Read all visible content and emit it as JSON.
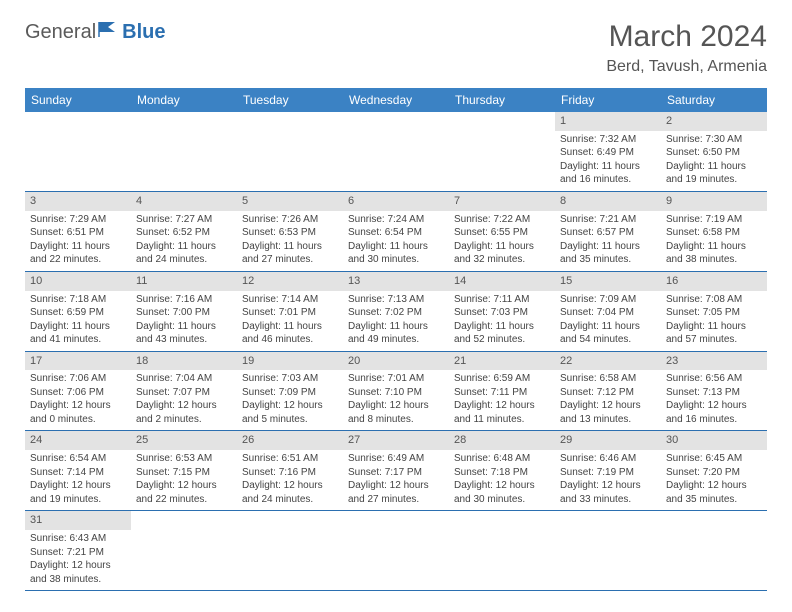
{
  "logo": {
    "text1": "General",
    "text2": "Blue"
  },
  "title": "March 2024",
  "location": "Berd, Tavush, Armenia",
  "colors": {
    "header_bg": "#3b82c4",
    "header_text": "#ffffff",
    "row_border": "#2b6fb0",
    "daynum_bg": "#e3e3e3",
    "text": "#444444",
    "logo_blue": "#2b6fb0"
  },
  "dayNames": [
    "Sunday",
    "Monday",
    "Tuesday",
    "Wednesday",
    "Thursday",
    "Friday",
    "Saturday"
  ],
  "weeks": [
    [
      null,
      null,
      null,
      null,
      null,
      {
        "n": "1",
        "sr": "7:32 AM",
        "ss": "6:49 PM",
        "dl": "11 hours and 16 minutes."
      },
      {
        "n": "2",
        "sr": "7:30 AM",
        "ss": "6:50 PM",
        "dl": "11 hours and 19 minutes."
      }
    ],
    [
      {
        "n": "3",
        "sr": "7:29 AM",
        "ss": "6:51 PM",
        "dl": "11 hours and 22 minutes."
      },
      {
        "n": "4",
        "sr": "7:27 AM",
        "ss": "6:52 PM",
        "dl": "11 hours and 24 minutes."
      },
      {
        "n": "5",
        "sr": "7:26 AM",
        "ss": "6:53 PM",
        "dl": "11 hours and 27 minutes."
      },
      {
        "n": "6",
        "sr": "7:24 AM",
        "ss": "6:54 PM",
        "dl": "11 hours and 30 minutes."
      },
      {
        "n": "7",
        "sr": "7:22 AM",
        "ss": "6:55 PM",
        "dl": "11 hours and 32 minutes."
      },
      {
        "n": "8",
        "sr": "7:21 AM",
        "ss": "6:57 PM",
        "dl": "11 hours and 35 minutes."
      },
      {
        "n": "9",
        "sr": "7:19 AM",
        "ss": "6:58 PM",
        "dl": "11 hours and 38 minutes."
      }
    ],
    [
      {
        "n": "10",
        "sr": "7:18 AM",
        "ss": "6:59 PM",
        "dl": "11 hours and 41 minutes."
      },
      {
        "n": "11",
        "sr": "7:16 AM",
        "ss": "7:00 PM",
        "dl": "11 hours and 43 minutes."
      },
      {
        "n": "12",
        "sr": "7:14 AM",
        "ss": "7:01 PM",
        "dl": "11 hours and 46 minutes."
      },
      {
        "n": "13",
        "sr": "7:13 AM",
        "ss": "7:02 PM",
        "dl": "11 hours and 49 minutes."
      },
      {
        "n": "14",
        "sr": "7:11 AM",
        "ss": "7:03 PM",
        "dl": "11 hours and 52 minutes."
      },
      {
        "n": "15",
        "sr": "7:09 AM",
        "ss": "7:04 PM",
        "dl": "11 hours and 54 minutes."
      },
      {
        "n": "16",
        "sr": "7:08 AM",
        "ss": "7:05 PM",
        "dl": "11 hours and 57 minutes."
      }
    ],
    [
      {
        "n": "17",
        "sr": "7:06 AM",
        "ss": "7:06 PM",
        "dl": "12 hours and 0 minutes."
      },
      {
        "n": "18",
        "sr": "7:04 AM",
        "ss": "7:07 PM",
        "dl": "12 hours and 2 minutes."
      },
      {
        "n": "19",
        "sr": "7:03 AM",
        "ss": "7:09 PM",
        "dl": "12 hours and 5 minutes."
      },
      {
        "n": "20",
        "sr": "7:01 AM",
        "ss": "7:10 PM",
        "dl": "12 hours and 8 minutes."
      },
      {
        "n": "21",
        "sr": "6:59 AM",
        "ss": "7:11 PM",
        "dl": "12 hours and 11 minutes."
      },
      {
        "n": "22",
        "sr": "6:58 AM",
        "ss": "7:12 PM",
        "dl": "12 hours and 13 minutes."
      },
      {
        "n": "23",
        "sr": "6:56 AM",
        "ss": "7:13 PM",
        "dl": "12 hours and 16 minutes."
      }
    ],
    [
      {
        "n": "24",
        "sr": "6:54 AM",
        "ss": "7:14 PM",
        "dl": "12 hours and 19 minutes."
      },
      {
        "n": "25",
        "sr": "6:53 AM",
        "ss": "7:15 PM",
        "dl": "12 hours and 22 minutes."
      },
      {
        "n": "26",
        "sr": "6:51 AM",
        "ss": "7:16 PM",
        "dl": "12 hours and 24 minutes."
      },
      {
        "n": "27",
        "sr": "6:49 AM",
        "ss": "7:17 PM",
        "dl": "12 hours and 27 minutes."
      },
      {
        "n": "28",
        "sr": "6:48 AM",
        "ss": "7:18 PM",
        "dl": "12 hours and 30 minutes."
      },
      {
        "n": "29",
        "sr": "6:46 AM",
        "ss": "7:19 PM",
        "dl": "12 hours and 33 minutes."
      },
      {
        "n": "30",
        "sr": "6:45 AM",
        "ss": "7:20 PM",
        "dl": "12 hours and 35 minutes."
      }
    ],
    [
      {
        "n": "31",
        "sr": "6:43 AM",
        "ss": "7:21 PM",
        "dl": "12 hours and 38 minutes."
      },
      null,
      null,
      null,
      null,
      null,
      null
    ]
  ],
  "labels": {
    "sunrise": "Sunrise:",
    "sunset": "Sunset:",
    "daylight": "Daylight:"
  }
}
